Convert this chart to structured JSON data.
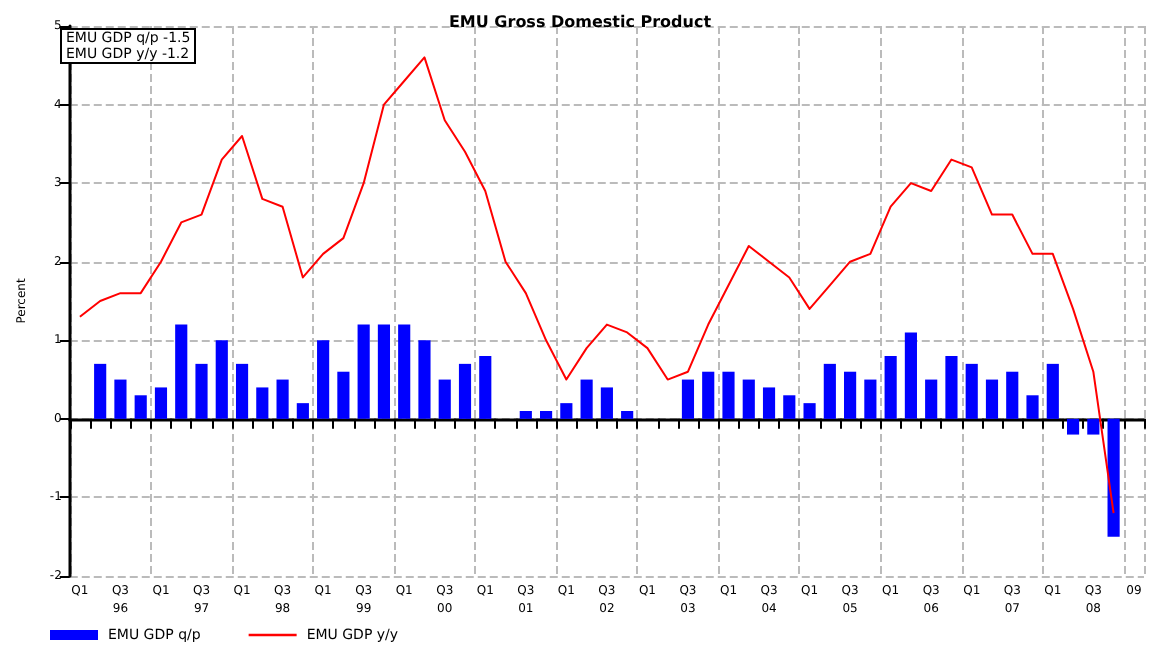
{
  "chart_data": {
    "type": "bar",
    "title": "EMU Gross Domestic Product",
    "ylabel": "Percent",
    "annotations": [
      "EMU GDP q/p  -1.5",
      "EMU GDP y/y  -1.2"
    ],
    "categories": [
      "Q1",
      null,
      "Q3\n96",
      null,
      "Q1",
      null,
      "Q3\n97",
      null,
      "Q1",
      null,
      "Q3\n98",
      null,
      "Q1",
      null,
      "Q3\n99",
      null,
      "Q1",
      null,
      "Q3\n00",
      null,
      "Q1",
      null,
      "Q3\n01",
      null,
      "Q1",
      null,
      "Q3\n02",
      null,
      "Q1",
      null,
      "Q3\n03",
      null,
      "Q1",
      null,
      "Q3\n04",
      null,
      "Q1",
      null,
      "Q3\n05",
      null,
      "Q1",
      null,
      "Q3\n06",
      null,
      "Q1",
      null,
      "Q3\n07",
      null,
      "Q1",
      null,
      "Q3\n08",
      null,
      "09"
    ],
    "series": [
      {
        "name": "EMU GDP q/p",
        "color": "#0000ff",
        "values": [
          0.0,
          0.7,
          0.5,
          0.3,
          0.4,
          1.2,
          0.7,
          1.0,
          0.7,
          0.4,
          0.5,
          0.2,
          1.0,
          0.6,
          1.2,
          1.2,
          1.2,
          1.0,
          0.5,
          0.7,
          0.8,
          0.0,
          0.1,
          0.1,
          0.2,
          0.5,
          0.4,
          0.1,
          0.0,
          0.0,
          0.5,
          0.6,
          0.6,
          0.5,
          0.4,
          0.3,
          0.2,
          0.7,
          0.6,
          0.5,
          0.8,
          1.1,
          0.5,
          0.8,
          0.7,
          0.5,
          0.6,
          0.3,
          0.7,
          -0.2,
          -0.2,
          -1.5,
          null
        ]
      },
      {
        "name": "EMU GDP y/y",
        "type": "line",
        "color": "#ff0000",
        "values": [
          1.3,
          1.5,
          1.6,
          1.6,
          2.0,
          2.5,
          2.6,
          3.3,
          3.6,
          2.8,
          2.7,
          1.8,
          2.1,
          2.3,
          3.0,
          4.0,
          4.3,
          4.6,
          3.8,
          3.4,
          2.9,
          2.0,
          1.6,
          1.0,
          0.5,
          0.9,
          1.2,
          1.1,
          0.9,
          0.5,
          0.6,
          1.2,
          1.7,
          2.2,
          2.0,
          1.8,
          1.4,
          1.7,
          2.0,
          2.1,
          2.7,
          3.0,
          2.9,
          3.3,
          3.2,
          2.6,
          2.6,
          2.1,
          2.1,
          1.4,
          0.6,
          -1.2,
          null
        ]
      }
    ],
    "ylim": [
      -2,
      5
    ],
    "yticks": [
      -2,
      -1,
      0,
      1,
      2,
      3,
      4,
      5
    ],
    "grid": true,
    "legend": "bottom left",
    "marker": "none",
    "line_style": "solid"
  }
}
